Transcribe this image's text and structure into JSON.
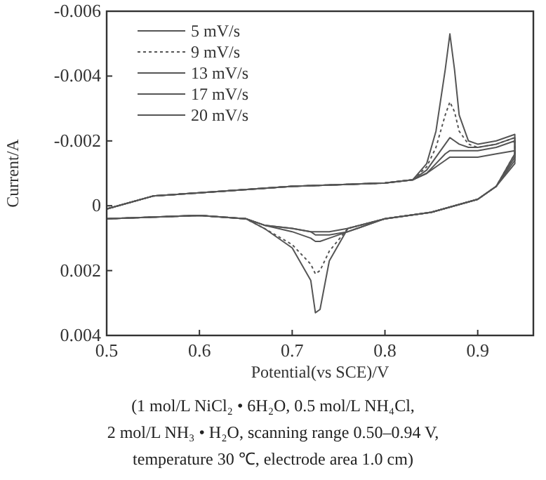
{
  "chart_data": {
    "type": "line",
    "xlabel": "Potential(vs SCE)/V",
    "ylabel": "Current/A",
    "annotations": [
      "(1 mol/L NiCl₂ • 6H₂O, 0.5 mol/L NH₄Cl,",
      "2 mol/L NH₃ • H₂O, scanning range 0.50–0.94 V,",
      "temperature 30 ℃, electrode area 1.0 cm)"
    ],
    "x": [
      0.5,
      0.55,
      0.6,
      0.7,
      0.8,
      0.83,
      0.845,
      0.855,
      0.865,
      0.87,
      0.875,
      0.88,
      0.89,
      0.9,
      0.92,
      0.94,
      0.94,
      0.92,
      0.9,
      0.85,
      0.8,
      0.76,
      0.74,
      0.73,
      0.725,
      0.72,
      0.7,
      0.67,
      0.65,
      0.6,
      0.5
    ],
    "series": [
      {
        "name": "5 mV/s",
        "color": "#555555",
        "line_style": "solid",
        "values": [
          0.0001,
          -0.0003,
          -0.0004,
          -0.0006,
          -0.0007,
          -0.0008,
          -0.0013,
          -0.0023,
          -0.0042,
          -0.0053,
          -0.0042,
          -0.0028,
          -0.002,
          -0.0019,
          -0.002,
          -0.0022,
          -0.0016,
          -0.0006,
          -0.0002,
          0.0002,
          0.0004,
          0.0007,
          0.0017,
          0.0032,
          0.0033,
          0.0023,
          0.0013,
          0.0007,
          0.0004,
          0.0003,
          0.0004
        ]
      },
      {
        "name": "9 mV/s",
        "color": "#555555",
        "line_style": "dotted",
        "values": [
          0.0001,
          -0.0003,
          -0.0004,
          -0.0006,
          -0.0007,
          -0.0008,
          -0.0012,
          -0.0018,
          -0.0028,
          -0.0032,
          -0.0029,
          -0.0023,
          -0.0019,
          -0.0018,
          -0.0019,
          -0.0021,
          -0.0016,
          -0.0006,
          -0.0002,
          0.0002,
          0.0004,
          0.0007,
          0.0014,
          0.002,
          0.0021,
          0.0018,
          0.0012,
          0.0007,
          0.0004,
          0.0003,
          0.0004
        ]
      },
      {
        "name": "13 mV/s",
        "color": "#555555",
        "line_style": "solid",
        "values": [
          0.0001,
          -0.0003,
          -0.0004,
          -0.0006,
          -0.0007,
          -0.0008,
          -0.0011,
          -0.0015,
          -0.0019,
          -0.0021,
          -0.002,
          -0.0019,
          -0.0018,
          -0.0018,
          -0.0019,
          -0.0021,
          -0.0015,
          -0.0006,
          -0.0002,
          0.0002,
          0.0004,
          0.0008,
          0.001,
          0.0011,
          0.0011,
          0.001,
          0.0008,
          0.0006,
          0.0004,
          0.0003,
          0.0004
        ]
      },
      {
        "name": "17 mV/s",
        "color": "#555555",
        "line_style": "solid",
        "values": [
          0.0001,
          -0.0003,
          -0.0004,
          -0.0006,
          -0.0007,
          -0.0008,
          -0.001,
          -0.0013,
          -0.0016,
          -0.0017,
          -0.0017,
          -0.0017,
          -0.0017,
          -0.0017,
          -0.0018,
          -0.002,
          -0.0014,
          -0.0006,
          -0.0002,
          0.0002,
          0.0004,
          0.0008,
          0.0009,
          0.0009,
          0.0009,
          0.0008,
          0.0007,
          0.0006,
          0.0004,
          0.0003,
          0.0004
        ]
      },
      {
        "name": "20 mV/s",
        "color": "#555555",
        "line_style": "solid",
        "values": [
          0.0001,
          -0.0003,
          -0.0004,
          -0.0006,
          -0.0007,
          -0.0008,
          -0.001,
          -0.0012,
          -0.0014,
          -0.0015,
          -0.0015,
          -0.0015,
          -0.0015,
          -0.0015,
          -0.0016,
          -0.0017,
          -0.0013,
          -0.0006,
          -0.0002,
          0.0002,
          0.0004,
          0.0007,
          0.0008,
          0.0008,
          0.0008,
          0.0008,
          0.0007,
          0.0006,
          0.0004,
          0.0003,
          0.0004
        ]
      }
    ],
    "xlim": [
      0.5,
      0.96
    ],
    "xticks": [
      0.5,
      0.6,
      0.7,
      0.8,
      0.9
    ],
    "ylim": [
      0.004,
      -0.006
    ],
    "yticks": [
      -0.006,
      -0.004,
      -0.002,
      0,
      0.002,
      0.004
    ],
    "grid": false,
    "legend": "top left",
    "marker": "none"
  }
}
